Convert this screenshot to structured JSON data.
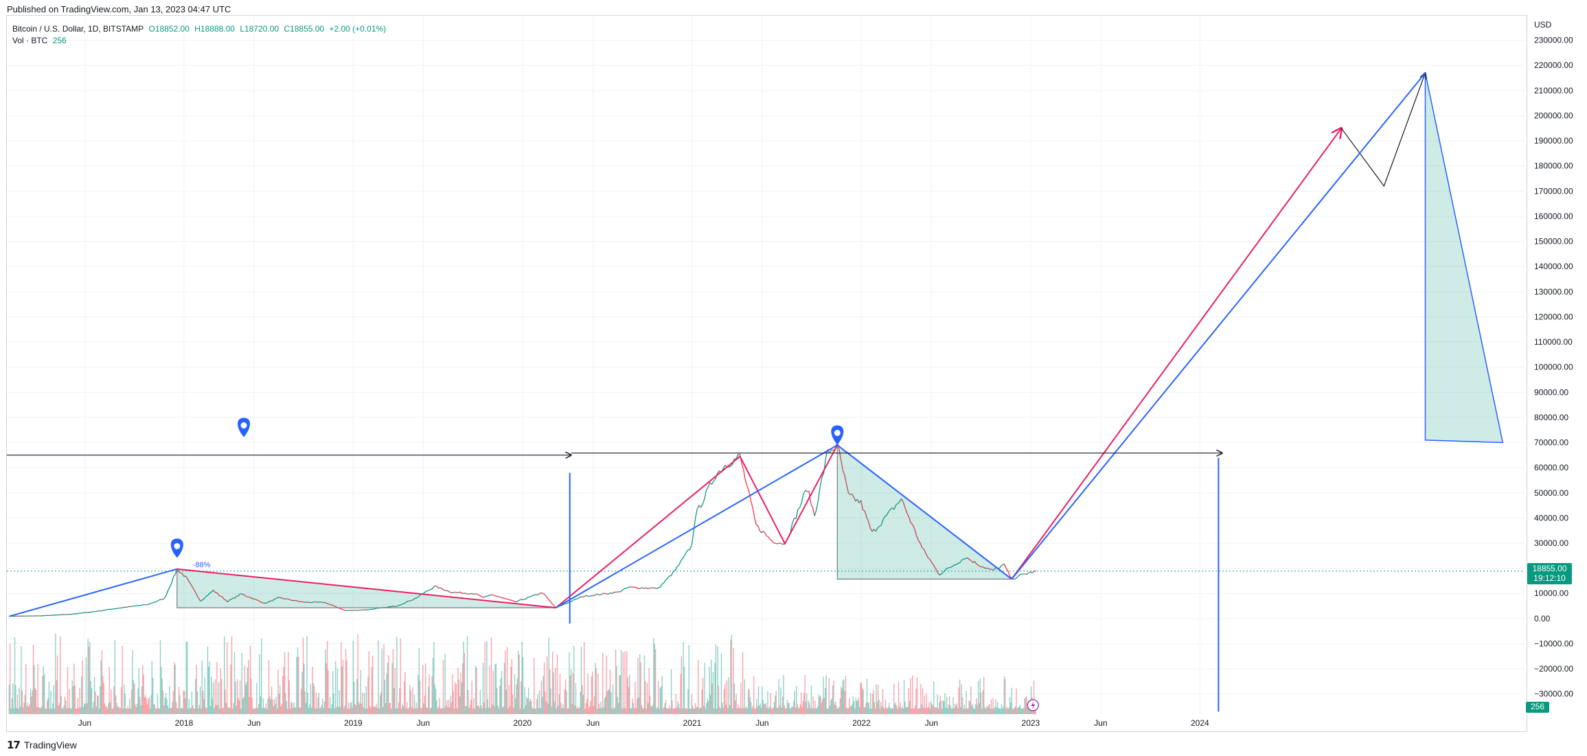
{
  "header": {
    "published": "Published on TradingView.com, Jan 13, 2023 04:47 UTC"
  },
  "legend": {
    "symbol": "Bitcoin / U.S. Dollar, 1D, BITSTAMP",
    "open": "O18852.00",
    "high": "H18888.00",
    "low": "L18720.00",
    "close": "C18855.00",
    "change": "+2.00 (+0.01%)",
    "vol_label": "Vol · BTC",
    "vol_value": "256"
  },
  "price_badge": {
    "price": "18855.00",
    "countdown": "19:12:10"
  },
  "volume_badge": "256",
  "annotation_percent": "-88%",
  "footer": {
    "brand": "TradingView"
  },
  "colors": {
    "up": "#089981",
    "down": "#f23645",
    "blue": "#2962ff",
    "magenta": "#e91e63",
    "fill": "rgba(8,153,129,0.2)"
  },
  "chart_data": {
    "type": "line",
    "currency": "USD",
    "y_ticks": [
      230000,
      220000,
      210000,
      200000,
      190000,
      180000,
      170000,
      160000,
      150000,
      140000,
      130000,
      120000,
      110000,
      100000,
      90000,
      80000,
      70000,
      60000,
      50000,
      40000,
      30000,
      20000,
      10000,
      0,
      -10000,
      -20000,
      -30000
    ],
    "y_tick_labels": [
      "230000.00",
      "220000.00",
      "210000.00",
      "200000.00",
      "190000.00",
      "180000.00",
      "170000.00",
      "160000.00",
      "150000.00",
      "140000.00",
      "130000.00",
      "120000.00",
      "110000.00",
      "100000.00",
      "90000.00",
      "80000.00",
      "70000.00",
      "60000.00",
      "50000.00",
      "40000.00",
      "30000.00",
      "20000.00",
      "10000.00",
      "0.00",
      "−10000.00",
      "−20000.00",
      "−30000.00"
    ],
    "ylim": [
      -38000,
      240000
    ],
    "x_tick_labels": [
      {
        "label": "Jun",
        "date": "2017-06-01"
      },
      {
        "label": "2018",
        "date": "2018-01-01"
      },
      {
        "label": "Jun",
        "date": "2018-06-01"
      },
      {
        "label": "2019",
        "date": "2019-01-01"
      },
      {
        "label": "Jun",
        "date": "2019-06-01"
      },
      {
        "label": "2020",
        "date": "2020-01-01"
      },
      {
        "label": "Jun",
        "date": "2020-06-01"
      },
      {
        "label": "2021",
        "date": "2021-01-01"
      },
      {
        "label": "Jun",
        "date": "2021-06-01"
      },
      {
        "label": "2022",
        "date": "2022-01-01"
      },
      {
        "label": "Jun",
        "date": "2022-06-01"
      },
      {
        "label": "2023",
        "date": "2023-01-01"
      },
      {
        "label": "Jun",
        "date": "2023-06-01"
      },
      {
        "label": "2024",
        "date": "2024-01-01"
      }
    ],
    "xlim": [
      "2016-12-15",
      "2025-12-01"
    ],
    "series": [
      {
        "values": [
          [
            "2016-12-20",
            900
          ],
          [
            "2017-03-01",
            1100
          ],
          [
            "2017-05-01",
            1700
          ],
          [
            "2017-06-15",
            2600
          ],
          [
            "2017-08-15",
            4200
          ],
          [
            "2017-10-15",
            5600
          ],
          [
            "2017-11-20",
            8000
          ],
          [
            "2017-12-17",
            19500
          ],
          [
            "2018-01-05",
            16500
          ],
          [
            "2018-02-06",
            7000
          ],
          [
            "2018-03-05",
            11200
          ],
          [
            "2018-04-05",
            6800
          ],
          [
            "2018-05-05",
            9800
          ],
          [
            "2018-06-25",
            6000
          ],
          [
            "2018-07-25",
            8300
          ],
          [
            "2018-09-15",
            6500
          ],
          [
            "2018-11-01",
            6400
          ],
          [
            "2018-12-15",
            3200
          ],
          [
            "2019-02-01",
            3500
          ],
          [
            "2019-04-05",
            5000
          ],
          [
            "2019-05-15",
            8000
          ],
          [
            "2019-06-26",
            12800
          ],
          [
            "2019-08-01",
            10500
          ],
          [
            "2019-09-20",
            9900
          ],
          [
            "2019-10-10",
            8300
          ],
          [
            "2019-10-27",
            9500
          ],
          [
            "2019-12-17",
            6600
          ],
          [
            "2020-02-13",
            10300
          ],
          [
            "2020-03-13",
            4300
          ],
          [
            "2020-05-10",
            8800
          ],
          [
            "2020-07-25",
            10500
          ],
          [
            "2020-08-17",
            12400
          ],
          [
            "2020-10-20",
            12000
          ],
          [
            "2020-11-25",
            19000
          ],
          [
            "2020-12-31",
            29000
          ],
          [
            "2021-01-08",
            41000
          ],
          [
            "2021-02-20",
            57000
          ],
          [
            "2021-03-13",
            61000
          ],
          [
            "2021-04-14",
            64500
          ],
          [
            "2021-05-19",
            37000
          ],
          [
            "2021-06-22",
            31000
          ],
          [
            "2021-07-20",
            29800
          ],
          [
            "2021-09-06",
            52000
          ],
          [
            "2021-09-22",
            41000
          ],
          [
            "2021-10-20",
            66000
          ],
          [
            "2021-11-10",
            69000
          ],
          [
            "2021-12-04",
            49000
          ],
          [
            "2021-12-31",
            46000
          ],
          [
            "2022-01-24",
            34000
          ],
          [
            "2022-03-28",
            47500
          ],
          [
            "2022-05-12",
            28000
          ],
          [
            "2022-06-18",
            17600
          ],
          [
            "2022-08-14",
            24400
          ],
          [
            "2022-09-10",
            21500
          ],
          [
            "2022-10-10",
            19100
          ],
          [
            "2022-11-05",
            21300
          ],
          [
            "2022-11-21",
            15700
          ],
          [
            "2022-12-15",
            17500
          ],
          [
            "2023-01-13",
            18855
          ]
        ]
      }
    ],
    "drawings": {
      "horizontal_level": 65000,
      "uptrend_points": [
        [
          "2016-12-20",
          900
        ],
        [
          "2017-12-17",
          19700
        ]
      ],
      "sideways_triangle": [
        [
          "2017-12-17",
          19700
        ],
        [
          "2020-03-13",
          4300
        ],
        [
          "2017-12-17",
          4300
        ]
      ],
      "bull_run_magenta": [
        [
          "2020-03-13",
          4300
        ],
        [
          "2021-04-14",
          64500
        ],
        [
          "2021-07-20",
          29800
        ],
        [
          "2021-11-10",
          69000
        ]
      ],
      "bull_run_blue": [
        [
          "2020-03-13",
          4300
        ],
        [
          "2021-11-10",
          69000
        ]
      ],
      "bear_triangle": [
        [
          "2021-11-10",
          69000
        ],
        [
          "2022-11-21",
          15700
        ],
        [
          "2021-11-10",
          15700
        ]
      ],
      "projection_magenta": [
        [
          "2022-11-21",
          15700
        ],
        [
          "2024-11-01",
          195000
        ]
      ],
      "projection_black": [
        [
          "2024-11-01",
          195000
        ],
        [
          "2025-02-01",
          172000
        ],
        [
          "2025-05-01",
          217000
        ]
      ],
      "projection_blue": [
        [
          "2022-11-21",
          15700
        ],
        [
          "2025-05-01",
          217000
        ]
      ],
      "projection_triangle": [
        [
          "2025-05-01",
          217000
        ],
        [
          "2025-05-01",
          71000
        ],
        [
          "2025-10-15",
          70000
        ]
      ],
      "vertical_markers": [
        {
          "date": "2020-04-12",
          "from": -2000,
          "to": 58000
        },
        {
          "date": "2024-02-10",
          "from": -37000,
          "to": 64000
        }
      ],
      "pins": [
        {
          "date": "2017-12-17",
          "value": 28000
        },
        {
          "date": "2018-05-10",
          "value": 76000
        },
        {
          "date": "2021-11-10",
          "value": 73000
        }
      ]
    }
  }
}
